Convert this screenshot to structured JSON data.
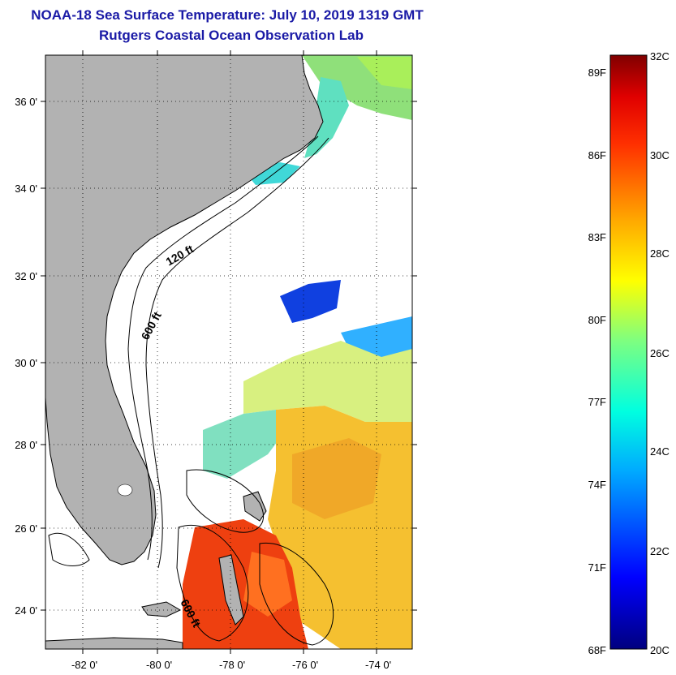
{
  "header": {
    "title": "NOAA-18 Sea Surface Temperature:  July 10, 2019 1319 GMT",
    "subtitle": "Rutgers Coastal Ocean Observation Lab"
  },
  "map": {
    "lat_labels": [
      "36 0'",
      "34 0'",
      "32 0'",
      "30 0'",
      "28 0'",
      "26 0'",
      "24 0'"
    ],
    "lon_labels": [
      "-82 0'",
      "-80 0'",
      "-78 0'",
      "-76 0'",
      "-74 0'"
    ],
    "contour_labels": [
      "120 ft",
      "600 ft",
      "600 ft"
    ],
    "colors": {
      "land": "#b2b2b2",
      "frame": "#000000",
      "grid": "#000000"
    }
  },
  "colorbar": {
    "fahrenheit_labels": [
      "89F",
      "86F",
      "83F",
      "80F",
      "77F",
      "74F",
      "71F",
      "68F"
    ],
    "celsius_labels": [
      "32C",
      "30C",
      "28C",
      "26C",
      "24C",
      "22C",
      "20C"
    ],
    "range_c": [
      20,
      32
    ],
    "range_f": [
      68,
      89.6
    ]
  }
}
